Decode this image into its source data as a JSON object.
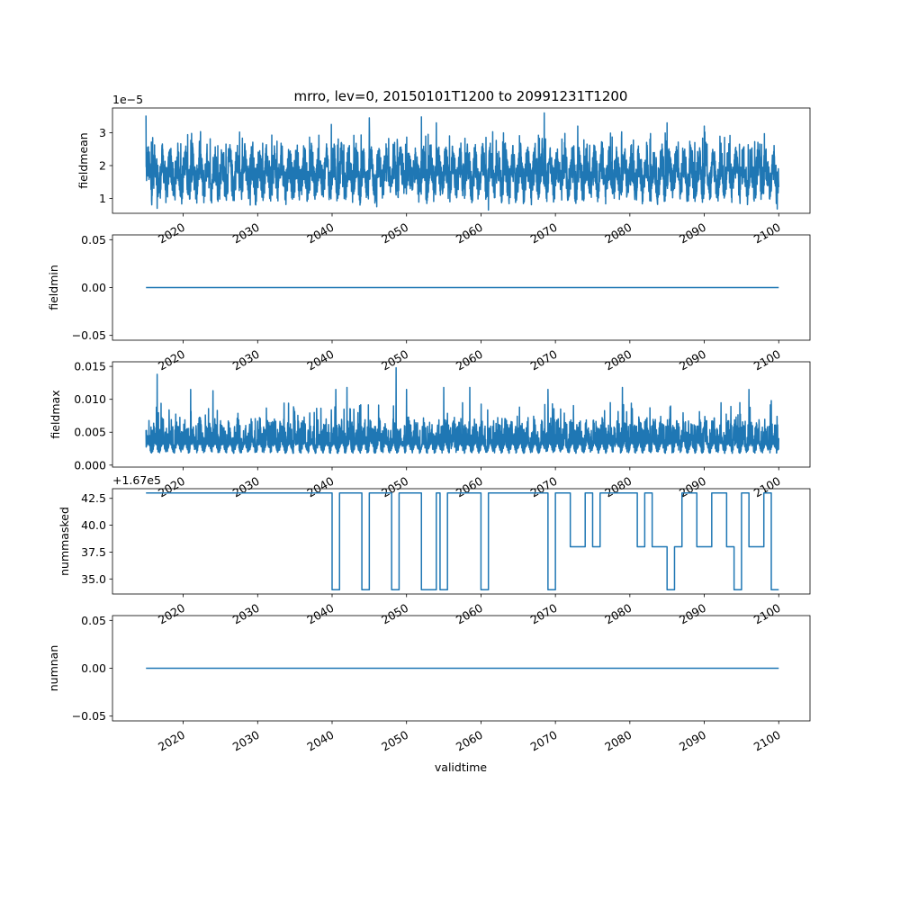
{
  "chart_data": {
    "type": "line",
    "title": "mrro, lev=0, 20150101T1200 to 20991231T1200",
    "xlabel": "validtime",
    "line_color": "#1f77b4",
    "x_ticks": [
      "2020",
      "2030",
      "2040",
      "2050",
      "2060",
      "2070",
      "2080",
      "2090",
      "2100"
    ],
    "xlim": [
      2010.5,
      2104.2
    ],
    "x_range": [
      2015.0,
      2100.0
    ],
    "panels": [
      {
        "name": "fieldmean",
        "ylabel": "fieldmean",
        "offset_label": "1e−5",
        "ylim": [
          0.55,
          3.75
        ],
        "yticks": [
          1,
          2,
          3
        ],
        "ytick_labels": [
          "1",
          "2",
          "3"
        ],
        "series_kind": "noisy",
        "baseline": 1.75,
        "typical_low": 1.0,
        "typical_high": 2.6,
        "data_min": 0.65,
        "data_max": 3.6,
        "peaks": [
          [
            2015.0,
            3.52
          ],
          [
            2039.9,
            3.25
          ],
          [
            2045.0,
            3.45
          ],
          [
            2052.0,
            3.48
          ],
          [
            2054.0,
            3.3
          ],
          [
            2068.5,
            3.6
          ],
          [
            2073.0,
            3.2
          ],
          [
            2085.0,
            3.3
          ],
          [
            2090.0,
            3.2
          ]
        ],
        "troughs": [
          [
            2016.5,
            0.7
          ],
          [
            2029.0,
            0.8
          ],
          [
            2046.0,
            0.75
          ],
          [
            2061.0,
            0.65
          ],
          [
            2099.8,
            0.68
          ]
        ]
      },
      {
        "name": "fieldmin",
        "ylabel": "fieldmin",
        "ylim": [
          -0.055,
          0.055
        ],
        "yticks": [
          -0.05,
          0.0,
          0.05
        ],
        "ytick_labels": [
          "−0.05",
          "0.00",
          "0.05"
        ],
        "series_kind": "constant",
        "value": 0.0
      },
      {
        "name": "fieldmax",
        "ylabel": "fieldmax",
        "ylim": [
          -0.0003,
          0.0157
        ],
        "yticks": [
          0.0,
          0.005,
          0.01,
          0.015
        ],
        "ytick_labels": [
          "0.000",
          "0.005",
          "0.010",
          "0.015"
        ],
        "series_kind": "noisy",
        "baseline": 0.0025,
        "typical_low": 0.0012,
        "typical_high": 0.006,
        "data_min": 0.0008,
        "data_max": 0.0148,
        "peaks": [
          [
            2016.5,
            0.0138
          ],
          [
            2021.0,
            0.0115
          ],
          [
            2024.0,
            0.0113
          ],
          [
            2040.5,
            0.0115
          ],
          [
            2042.0,
            0.0118
          ],
          [
            2048.6,
            0.0148
          ],
          [
            2050.0,
            0.0115
          ],
          [
            2055.0,
            0.0118
          ],
          [
            2058.5,
            0.0118
          ],
          [
            2069.0,
            0.0115
          ],
          [
            2079.0,
            0.0118
          ],
          [
            2096.0,
            0.0115
          ],
          [
            2099.0,
            0.0098
          ]
        ],
        "troughs": []
      },
      {
        "name": "nummasked",
        "ylabel": "nummasked",
        "offset_label": "+1.67e5",
        "ylim": [
          33.6,
          43.4
        ],
        "yticks": [
          35.0,
          37.5,
          40.0,
          42.5
        ],
        "ytick_labels": [
          "35.0",
          "37.5",
          "40.0",
          "42.5"
        ],
        "series_kind": "step",
        "steps": [
          [
            2015.0,
            43
          ],
          [
            2040.0,
            34
          ],
          [
            2041.0,
            43
          ],
          [
            2044.0,
            34
          ],
          [
            2045.0,
            43
          ],
          [
            2048.0,
            34
          ],
          [
            2049.0,
            43
          ],
          [
            2052.0,
            34
          ],
          [
            2054.0,
            43
          ],
          [
            2054.5,
            34
          ],
          [
            2055.5,
            43
          ],
          [
            2060.0,
            34
          ],
          [
            2061.0,
            43
          ],
          [
            2069.0,
            34
          ],
          [
            2070.0,
            43
          ],
          [
            2072.0,
            38
          ],
          [
            2074.0,
            43
          ],
          [
            2075.0,
            38
          ],
          [
            2076.0,
            43
          ],
          [
            2081.0,
            38
          ],
          [
            2082.0,
            43
          ],
          [
            2083.0,
            38
          ],
          [
            2085.0,
            34
          ],
          [
            2086.0,
            38
          ],
          [
            2087.0,
            43
          ],
          [
            2089.0,
            38
          ],
          [
            2091.0,
            43
          ],
          [
            2093.0,
            38
          ],
          [
            2094.0,
            34
          ],
          [
            2095.0,
            43
          ],
          [
            2096.0,
            38
          ],
          [
            2098.0,
            43
          ],
          [
            2099.0,
            34
          ],
          [
            2100.0,
            34
          ]
        ]
      },
      {
        "name": "numnan",
        "ylabel": "numnan",
        "ylim": [
          -0.055,
          0.055
        ],
        "yticks": [
          -0.05,
          0.0,
          0.05
        ],
        "ytick_labels": [
          "−0.05",
          "0.00",
          "0.05"
        ],
        "series_kind": "constant",
        "value": 0.0
      }
    ]
  }
}
